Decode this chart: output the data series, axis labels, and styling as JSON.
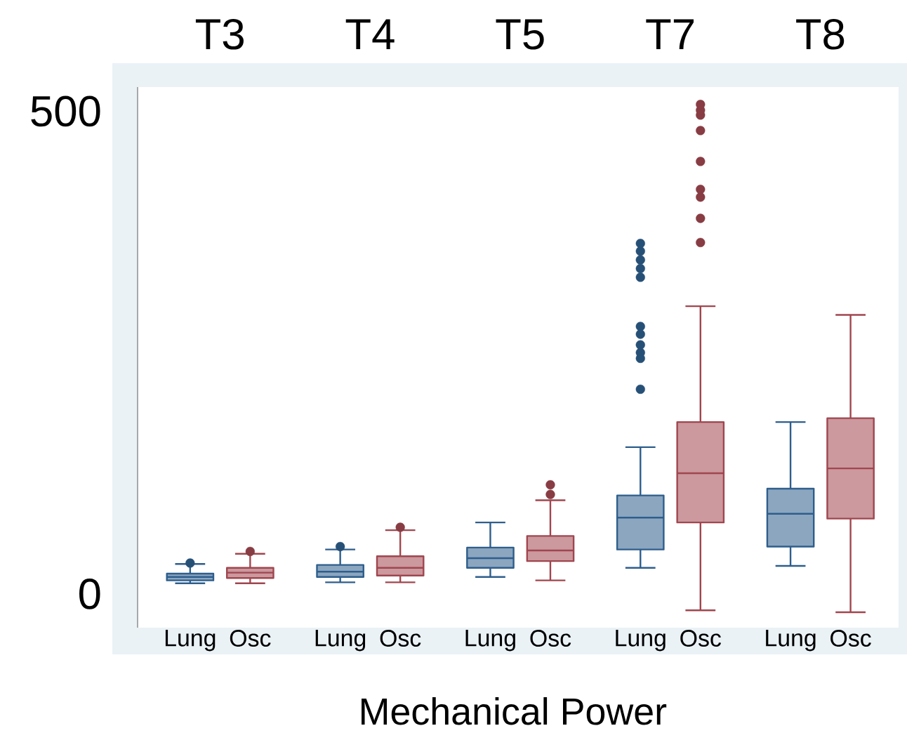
{
  "chart_data": {
    "type": "box",
    "categories": [
      "T3",
      "T4",
      "T5",
      "T7",
      "T8"
    ],
    "xlabel": "Mechanical Power",
    "ylim": [
      -35,
      525
    ],
    "yticks": [
      0,
      500
    ],
    "series": [
      {
        "name": "Lung",
        "color": "#2e5e8c",
        "boxes": [
          {
            "low": 11,
            "q1": 14,
            "median": 17.5,
            "q3": 21,
            "high": 31,
            "outliers": [
              32
            ]
          },
          {
            "low": 12,
            "q1": 17.5,
            "median": 23,
            "q3": 30,
            "high": 46,
            "outliers": [
              49
            ]
          },
          {
            "low": 17.5,
            "q1": 27,
            "median": 37,
            "q3": 48,
            "high": 74
          },
          {
            "low": 27,
            "q1": 46,
            "median": 79,
            "q3": 102,
            "high": 152,
            "outliers": [
              212,
              244,
              250,
              258,
              269,
              277,
              328,
              337,
              346,
              355,
              363
            ]
          },
          {
            "low": 29,
            "q1": 49,
            "median": 83,
            "q3": 109,
            "high": 178
          }
        ]
      },
      {
        "name": "Osc",
        "color": "#a0464f",
        "boxes": [
          {
            "low": 11,
            "q1": 16.5,
            "median": 22,
            "q3": 27,
            "high": 41.5,
            "outliers": [
              44
            ]
          },
          {
            "low": 12,
            "q1": 19,
            "median": 27,
            "q3": 39,
            "high": 66,
            "outliers": [
              69
            ]
          },
          {
            "low": 14,
            "q1": 34,
            "median": 45,
            "q3": 60,
            "high": 97,
            "outliers": [
              103,
              113
            ]
          },
          {
            "low": -17,
            "q1": 74,
            "median": 125,
            "q3": 178,
            "high": 298,
            "outliers": [
              364,
              389,
              411,
              419,
              448,
              480,
              496,
              501,
              507
            ]
          },
          {
            "low": -19,
            "q1": 78,
            "median": 130,
            "q3": 182,
            "high": 289
          }
        ]
      }
    ]
  }
}
